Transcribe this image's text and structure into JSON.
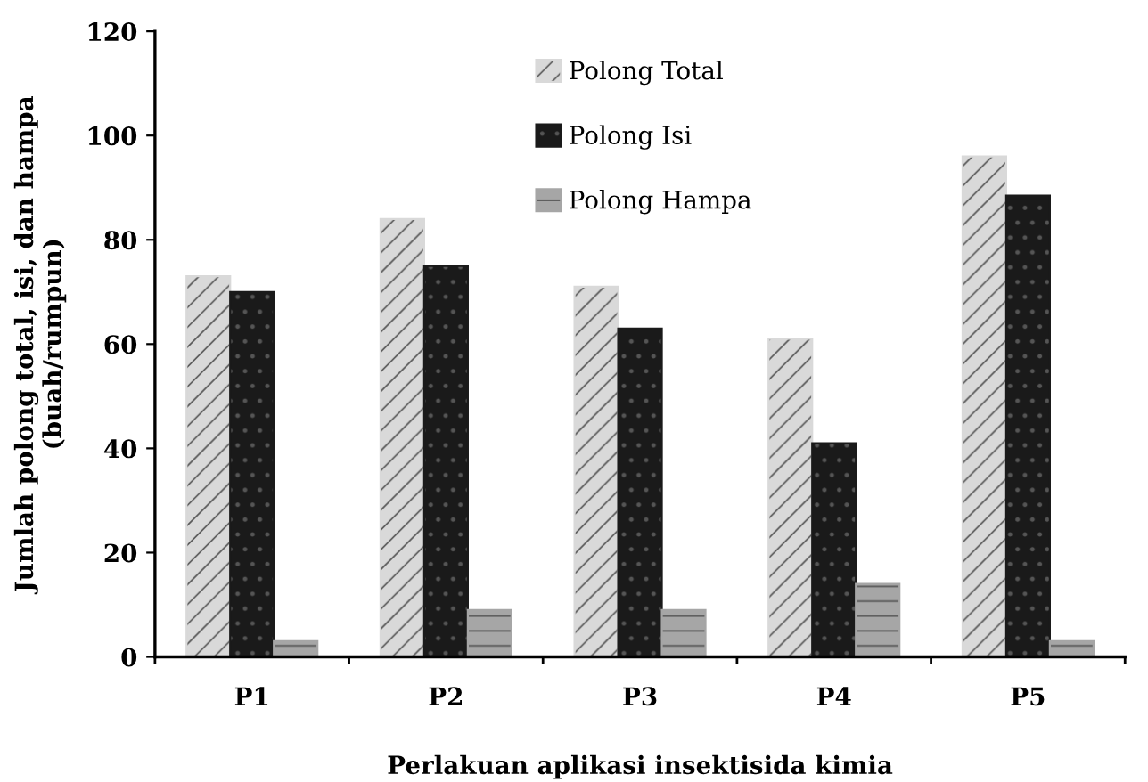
{
  "chart_data": {
    "type": "bar",
    "categories": [
      "P1",
      "P2",
      "P3",
      "P4",
      "P5"
    ],
    "series": [
      {
        "name": "Polong Total",
        "color": "#d9d9d9",
        "values": [
          73,
          84,
          71,
          61,
          96
        ]
      },
      {
        "name": "Polong Isi",
        "color": "#1a1a1a",
        "values": [
          70,
          75,
          63,
          41,
          88.5
        ]
      },
      {
        "name": "Polong Hampa",
        "color": "#a6a6a6",
        "values": [
          3,
          9,
          9,
          14,
          3
        ]
      }
    ],
    "xlabel": "Perlakuan aplikasi insektisida kimia",
    "ylabel": "Jumlah polong total, isi, dan hampa\n(buah/rumpun)",
    "ylim": [
      0,
      120
    ],
    "yticks": [
      0,
      20,
      40,
      60,
      80,
      100,
      120
    ],
    "grid": false,
    "legend": "top"
  }
}
